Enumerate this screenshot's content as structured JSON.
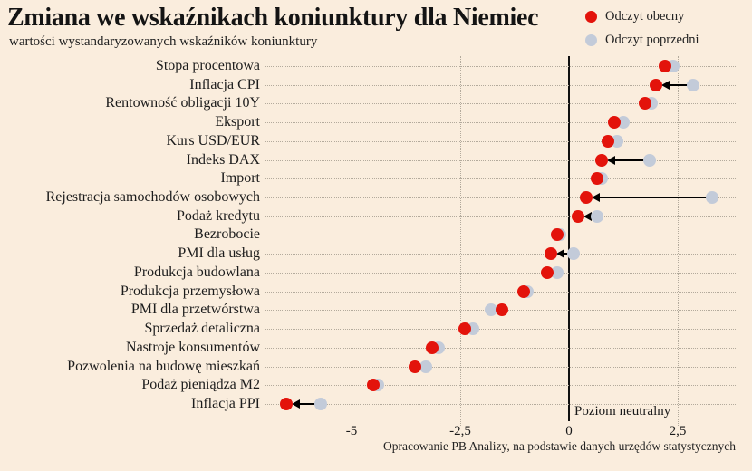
{
  "title": "Zmiana we wskaźnikach koniunktury dla Niemiec",
  "subtitle": "wartości wystandaryzowanych wskaźników koniunktury",
  "legend": {
    "current": "Odczyt obecny",
    "previous": "Odczyt poprzedni"
  },
  "neutral_label": "Poziom neutralny",
  "source": "Opracowanie PB Analizy, na podstawie danych urzędów statystycznych",
  "colors": {
    "background": "#faeddd",
    "current": "#e3130b",
    "previous": "#c3cbd9",
    "arrow": "#000000",
    "grid": "#b3aa9c",
    "zero_line": "#111111",
    "text": "#1a1a1a"
  },
  "chart_data": {
    "type": "scatter",
    "subtype": "dot-plot-dumbbell",
    "title": "Zmiana we wskaźnikach koniunktury dla Niemiec",
    "subtitle": "wartości wystandaryzowanych wskaźników koniunktury",
    "xlabel": "",
    "ylabel": "",
    "xlim": [
      -7.0,
      3.83
    ],
    "grid": "dotted",
    "legend_position": "top-right",
    "series_names": [
      "Odczyt obecny",
      "Odczyt poprzedni"
    ],
    "x_ticks": [
      {
        "value": -5,
        "label": "-5"
      },
      {
        "value": -2.5,
        "label": "-2,5"
      },
      {
        "value": 0,
        "label": "0"
      },
      {
        "value": 2.5,
        "label": "2,5"
      }
    ],
    "grid_tick_values": [
      -5,
      -2.5,
      2.5
    ],
    "neutral_line_value": 0,
    "rows": [
      {
        "label": "Stopa procentowa",
        "current": 2.2,
        "previous": 2.4,
        "arrow": false
      },
      {
        "label": "Inflacja CPI",
        "current": 2.0,
        "previous": 2.85,
        "arrow": true
      },
      {
        "label": "Rentowność obligacji 10Y",
        "current": 1.75,
        "previous": 1.9,
        "arrow": false
      },
      {
        "label": "Eksport",
        "current": 1.05,
        "previous": 1.25,
        "arrow": false
      },
      {
        "label": "Kurs USD/EUR",
        "current": 0.9,
        "previous": 1.1,
        "arrow": false
      },
      {
        "label": "Indeks DAX",
        "current": 0.75,
        "previous": 1.85,
        "arrow": true
      },
      {
        "label": "Import",
        "current": 0.65,
        "previous": 0.75,
        "arrow": false
      },
      {
        "label": "Rejestracja samochodów osobowych",
        "current": 0.4,
        "previous": 3.3,
        "arrow": true
      },
      {
        "label": "Podaż kredytu",
        "current": 0.2,
        "previous": 0.65,
        "arrow": true
      },
      {
        "label": "Bezrobocie",
        "current": -0.27,
        "previous": -0.2,
        "arrow": false
      },
      {
        "label": "PMI dla usług",
        "current": -0.42,
        "previous": 0.1,
        "arrow": true
      },
      {
        "label": "Produkcja budowlana",
        "current": -0.5,
        "previous": -0.27,
        "arrow": false
      },
      {
        "label": "Produkcja przemysłowa",
        "current": -1.05,
        "previous": -0.95,
        "arrow": false
      },
      {
        "label": "PMI dla przetwórstwa",
        "current": -1.55,
        "previous": -1.8,
        "arrow": false
      },
      {
        "label": "Sprzedaż detaliczna",
        "current": -2.4,
        "previous": -2.2,
        "arrow": false
      },
      {
        "label": "Nastroje konsumentów",
        "current": -3.15,
        "previous": -3.0,
        "arrow": false
      },
      {
        "label": "Pozwolenia na budowę mieszkań",
        "current": -3.55,
        "previous": -3.3,
        "arrow": false
      },
      {
        "label": "Podaż pieniądza M2",
        "current": -4.5,
        "previous": -4.4,
        "arrow": false
      },
      {
        "label": "Inflacja PPI",
        "current": -6.5,
        "previous": -5.7,
        "arrow": true
      }
    ]
  }
}
